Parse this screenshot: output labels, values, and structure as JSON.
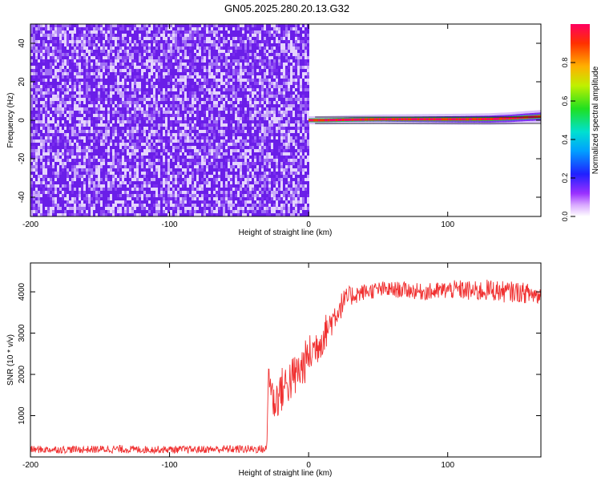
{
  "title": "GN05.2025.280.20.13.G32",
  "colors": {
    "snr_line": "#f03030",
    "noise_purple": "#7a2cf0",
    "frame": "#000000"
  },
  "chart_data": [
    {
      "type": "heatmap",
      "xlabel": "Height of straight line (km)",
      "ylabel": "Frequency (Hz)",
      "xlim": [
        -200,
        167
      ],
      "ylim": [
        -50,
        50
      ],
      "x_ticks": [
        "-200",
        "-100",
        "0",
        "100"
      ],
      "y_ticks": [
        "-40",
        "-20",
        "0",
        "20",
        "40"
      ],
      "colorbar": {
        "label": "Normalized spectral amplitude",
        "range": [
          0,
          1
        ],
        "ticks": [
          "0.0",
          "0.2",
          "0.4",
          "0.6",
          "0.8"
        ],
        "colormap": "rainbow (purple-blue-cyan-green-yellow-red)"
      },
      "regions": [
        {
          "x_range": [
            -200,
            0
          ],
          "description_value": "uniform noise",
          "amplitude": 0.05
        },
        {
          "x_range": [
            0,
            167
          ],
          "ridge_freq_hz": [
            0,
            0,
            0.3,
            0.5,
            0.5,
            0.5,
            0.5,
            0.6,
            1.0,
            1.5,
            2.0
          ],
          "ridge_x_km": [
            0,
            10,
            30,
            50,
            70,
            90,
            110,
            130,
            145,
            155,
            167
          ],
          "amplitude": 1.0
        }
      ],
      "grid": false
    },
    {
      "type": "line",
      "xlabel": "Height of straight line (km)",
      "ylabel": "SNR (10 * v/v)",
      "xlim": [
        -200,
        167
      ],
      "ylim": [
        0,
        4700
      ],
      "x_ticks": [
        "-200",
        "-100",
        "0",
        "100"
      ],
      "y_ticks": [
        "1000",
        "2000",
        "3000",
        "4000"
      ],
      "series": [
        {
          "x": [
            -200,
            -180,
            -160,
            -140,
            -120,
            -100,
            -80,
            -60,
            -40,
            -30,
            -29,
            -25,
            -20,
            -15,
            -10,
            -5,
            0,
            5,
            10,
            15,
            20,
            25,
            30,
            40,
            50,
            60,
            70,
            80,
            90,
            100,
            110,
            120,
            130,
            140,
            150,
            160,
            167
          ],
          "y": [
            180,
            180,
            180,
            190,
            180,
            180,
            180,
            190,
            190,
            190,
            2100,
            1300,
            1600,
            1800,
            1950,
            2150,
            2450,
            2650,
            2900,
            3200,
            3500,
            3750,
            3900,
            4000,
            4050,
            4050,
            4050,
            4000,
            4000,
            4050,
            4050,
            4000,
            4050,
            4000,
            4000,
            3950,
            3900
          ],
          "noise_band": [
            90,
            90,
            90,
            100,
            90,
            90,
            90,
            100,
            100,
            100,
            300,
            500,
            550,
            550,
            550,
            550,
            500,
            500,
            450,
            400,
            350,
            300,
            250,
            200,
            200,
            200,
            200,
            200,
            220,
            220,
            240,
            260,
            260,
            260,
            250,
            250,
            250
          ]
        }
      ],
      "grid": false
    }
  ]
}
